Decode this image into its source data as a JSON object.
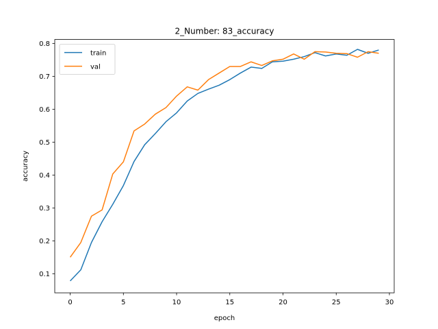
{
  "chart_data": {
    "type": "line",
    "title": "2_Number: 83_accuracy",
    "xlabel": "epoch",
    "ylabel": "accuracy",
    "xlim": [
      -1.45,
      30.45
    ],
    "ylim": [
      0.042,
      0.812
    ],
    "xticks": [
      0,
      5,
      10,
      15,
      20,
      25,
      30
    ],
    "yticks": [
      0.1,
      0.2,
      0.3,
      0.4,
      0.5,
      0.6,
      0.7,
      0.8
    ],
    "xtick_labels": [
      "0",
      "5",
      "10",
      "15",
      "20",
      "25",
      "30"
    ],
    "ytick_labels": [
      "0.1",
      "0.2",
      "0.3",
      "0.4",
      "0.5",
      "0.6",
      "0.7",
      "0.8"
    ],
    "grid": false,
    "legend_position": "upper-left",
    "x": [
      0,
      1,
      2,
      3,
      4,
      5,
      6,
      7,
      8,
      9,
      10,
      11,
      12,
      13,
      14,
      15,
      16,
      17,
      18,
      19,
      20,
      21,
      22,
      23,
      24,
      25,
      26,
      27,
      28,
      29
    ],
    "series": [
      {
        "name": "train",
        "color": "#1f77b4",
        "values": [
          0.078,
          0.112,
          0.195,
          0.258,
          0.311,
          0.368,
          0.441,
          0.492,
          0.526,
          0.562,
          0.589,
          0.625,
          0.648,
          0.661,
          0.673,
          0.69,
          0.71,
          0.728,
          0.724,
          0.744,
          0.746,
          0.752,
          0.76,
          0.772,
          0.762,
          0.768,
          0.764,
          0.782,
          0.77,
          0.78
        ]
      },
      {
        "name": "val",
        "color": "#ff7f0e",
        "values": [
          0.15,
          0.195,
          0.275,
          0.294,
          0.403,
          0.44,
          0.534,
          0.555,
          0.585,
          0.605,
          0.64,
          0.668,
          0.658,
          0.69,
          0.71,
          0.73,
          0.73,
          0.744,
          0.733,
          0.747,
          0.752,
          0.768,
          0.752,
          0.775,
          0.774,
          0.77,
          0.769,
          0.758,
          0.775,
          0.77
        ]
      }
    ]
  }
}
